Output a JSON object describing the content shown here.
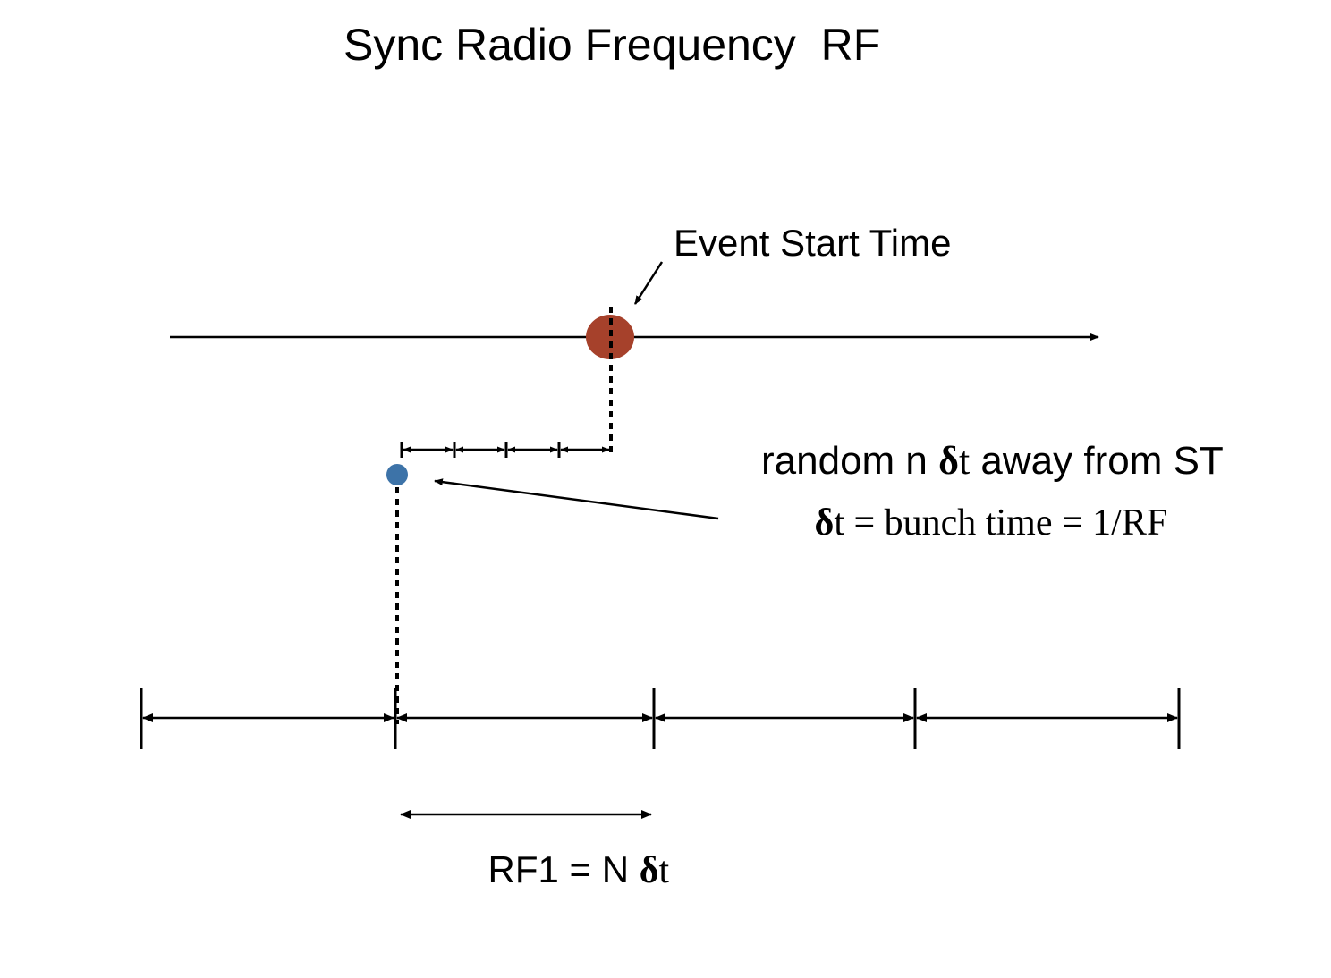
{
  "title": "Sync Radio Frequency  RF",
  "labels": {
    "event_start": "Event Start Time",
    "random_prefix": "random n ",
    "delta_symbol": "δ",
    "random_suffix_t": "t",
    "random_rest": " away from ST",
    "bunch_rest": "t = bunch time = 1/RF",
    "rf1_prefix": "RF1 = N ",
    "rf1_suffix_t": "t"
  },
  "colors": {
    "event_dot": "#a6412b",
    "sync_dot": "#3d73a8",
    "ink": "#000000"
  }
}
